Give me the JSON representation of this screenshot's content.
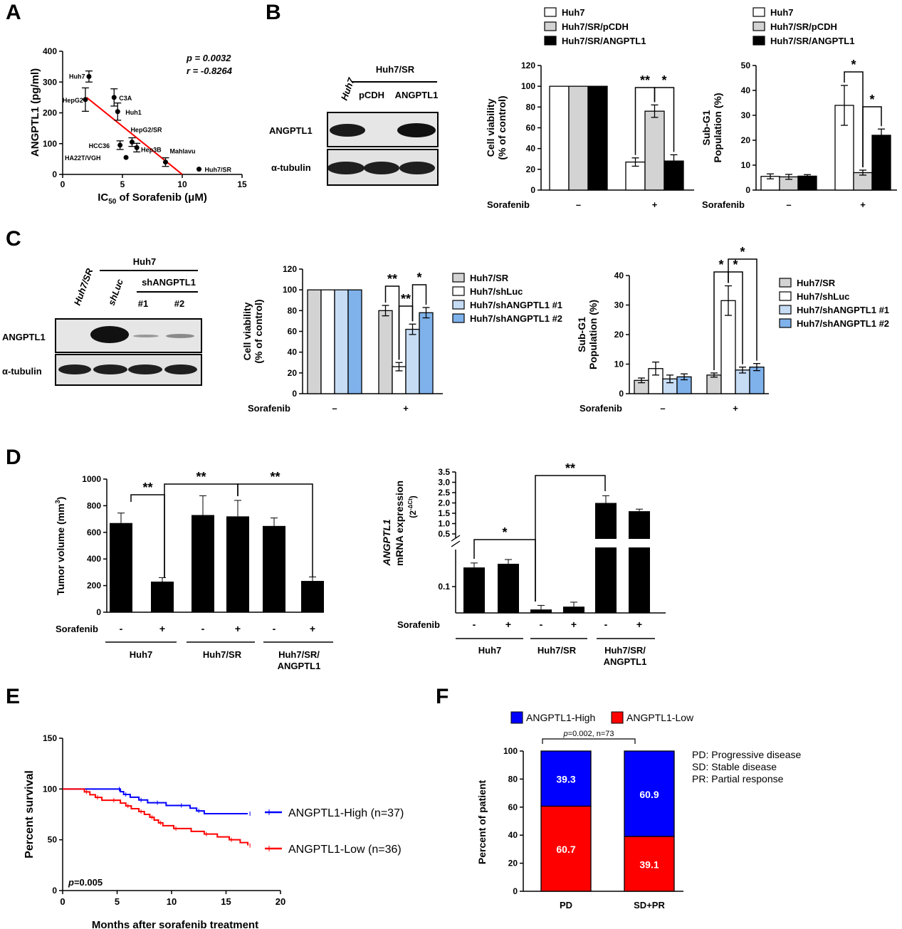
{
  "colors": {
    "red": "#ff0000",
    "blue": "#0000ff",
    "black": "#000000",
    "gray": "#d3d3d3",
    "lightblue": "#c6dcf5",
    "midblue": "#7fb2eb"
  },
  "panels": {
    "A": "A",
    "B": "B",
    "C": "C",
    "D": "D",
    "E": "E",
    "F": "F"
  },
  "labels": {
    "sorafenib": "Sorafenib",
    "minus": "–",
    "plus": "+",
    "minus_d": "-",
    "star1": "*",
    "star2": "**"
  },
  "blot_B": {
    "group_label": "Huh7/SR",
    "lane_labels": [
      "Huh7",
      "pCDH",
      "ANGPTL1"
    ],
    "rows": [
      "ANGPTL1",
      "α-tubulin"
    ]
  },
  "blot_C": {
    "group_label": "Huh7",
    "sub_label": "shANGPTL1",
    "lane_labels": [
      "Huh7/SR",
      "shLuc",
      "#1",
      "#2"
    ],
    "rows": [
      "ANGPTL1",
      "α-tubulin"
    ]
  },
  "chart_data": [
    {
      "panel": "A",
      "type": "scatter",
      "xlabel_main": "IC",
      "xlabel_sub": "50",
      "xlabel_rest": " of Sorafenib (μM)",
      "ylabel": "ANGPTL1 (pg/ml)",
      "xlim": [
        0,
        15
      ],
      "ylim": [
        0,
        400
      ],
      "xticks": [
        0,
        5,
        10,
        15
      ],
      "yticks": [
        0,
        100,
        200,
        300,
        400
      ],
      "stats": [
        "p = 0.0032",
        "r = -0.8264"
      ],
      "points": [
        {
          "label": "Huh7",
          "x": 2.2,
          "y": 318
        },
        {
          "label": "HepG2",
          "x": 1.9,
          "y": 243
        },
        {
          "label": "C3A",
          "x": 4.3,
          "y": 250
        },
        {
          "label": "Huh1",
          "x": 4.6,
          "y": 204
        },
        {
          "label": "HepG2/SR",
          "x": 5.8,
          "y": 105
        },
        {
          "label": "HCC36",
          "x": 4.8,
          "y": 95
        },
        {
          "label": "Hep3B",
          "x": 6.2,
          "y": 87
        },
        {
          "label": "HA22T/VGH",
          "x": 5.3,
          "y": 55
        },
        {
          "label": "Mahlavu",
          "x": 8.6,
          "y": 40
        },
        {
          "label": "Huh7/SR",
          "x": 11.4,
          "y": 17
        }
      ],
      "fit": {
        "x": [
          2,
          10
        ],
        "y": [
          250,
          0
        ]
      }
    },
    {
      "panel": "B-viability",
      "type": "bar",
      "ylabel": [
        "Cell viability",
        "(% of control)"
      ],
      "ylim": [
        0,
        120
      ],
      "yticks": [
        0,
        20,
        40,
        60,
        80,
        100,
        120
      ],
      "groups": [
        "–",
        "+"
      ],
      "legend": [
        "Huh7",
        "Huh7/SR/pCDH",
        "Huh7/SR/ANGPTL1"
      ],
      "series": [
        {
          "name": "Huh7",
          "values": [
            100,
            27
          ],
          "err": [
            0,
            4
          ]
        },
        {
          "name": "Huh7/SR/pCDH",
          "values": [
            100,
            76
          ],
          "err": [
            0,
            6
          ]
        },
        {
          "name": "Huh7/SR/ANGPTL1",
          "values": [
            100,
            28
          ],
          "err": [
            0,
            6
          ]
        }
      ]
    },
    {
      "panel": "B-subG1",
      "type": "bar",
      "ylabel": [
        "Sub-G1",
        "Population (%)"
      ],
      "ylim": [
        0,
        50
      ],
      "yticks": [
        0,
        10,
        20,
        30,
        40,
        50
      ],
      "groups": [
        "–",
        "+"
      ],
      "legend": [
        "Huh7",
        "Huh7/SR/pCDH",
        "Huh7/SR/ANGPTL1"
      ],
      "series": [
        {
          "name": "Huh7",
          "values": [
            5.5,
            34
          ],
          "err": [
            1,
            8
          ]
        },
        {
          "name": "Huh7/SR/pCDH",
          "values": [
            5.3,
            7
          ],
          "err": [
            1,
            1
          ]
        },
        {
          "name": "Huh7/SR/ANGPTL1",
          "values": [
            5.6,
            22
          ],
          "err": [
            0.6,
            2.5
          ]
        }
      ]
    },
    {
      "panel": "C-viability",
      "type": "bar",
      "ylabel": [
        "Cell viability",
        "(% of control)"
      ],
      "ylim": [
        0,
        120
      ],
      "yticks": [
        0,
        20,
        40,
        60,
        80,
        100,
        120
      ],
      "groups": [
        "–",
        "+"
      ],
      "legend": [
        "Huh7/SR",
        "Huh7/shLuc",
        "Huh7/shANGPTL1 #1",
        "Huh7/shANGPTL1 #2"
      ],
      "series": [
        {
          "name": "Huh7/SR",
          "values": [
            100,
            80
          ],
          "err": [
            0,
            5
          ]
        },
        {
          "name": "Huh7/shLuc",
          "values": [
            100,
            26
          ],
          "err": [
            0,
            4
          ]
        },
        {
          "name": "Huh7/shANGPTL1 #1",
          "values": [
            100,
            62
          ],
          "err": [
            0,
            5
          ]
        },
        {
          "name": "Huh7/shANGPTL1 #2",
          "values": [
            100,
            78
          ],
          "err": [
            0,
            5
          ]
        }
      ]
    },
    {
      "panel": "C-subG1",
      "type": "bar",
      "ylabel": [
        "Sub-G1",
        "Population (%)"
      ],
      "ylim": [
        0,
        40
      ],
      "yticks": [
        0,
        10,
        20,
        30,
        40
      ],
      "groups": [
        "–",
        "+"
      ],
      "legend": [
        "Huh7/SR",
        "Huh7/shLuc",
        "Huh7/shANGPTL1 #1",
        "Huh7/shANGPTL1 #2"
      ],
      "series": [
        {
          "name": "Huh7/SR",
          "values": [
            4.5,
            6.3
          ],
          "err": [
            0.8,
            0.7
          ]
        },
        {
          "name": "Huh7/shLuc",
          "values": [
            8.5,
            31.5
          ],
          "err": [
            2.2,
            5
          ]
        },
        {
          "name": "Huh7/shANGPTL1 #1",
          "values": [
            5,
            8
          ],
          "err": [
            1.3,
            1
          ]
        },
        {
          "name": "Huh7/shANGPTL1 #2",
          "values": [
            5.7,
            9
          ],
          "err": [
            1,
            1.2
          ]
        }
      ]
    },
    {
      "panel": "D-tumor",
      "type": "bar",
      "ylabel_main": "Tumor volume (mm",
      "ylabel_sup": "3",
      "ylabel_end": ")",
      "ylim": [
        0,
        1000
      ],
      "yticks": [
        0,
        200,
        400,
        600,
        800,
        1000
      ],
      "treatment": [
        "-",
        "+",
        "-",
        "+",
        "-",
        "+"
      ],
      "groups": [
        "Huh7",
        "Huh7/SR",
        [
          "Huh7/SR/",
          "ANGPTL1"
        ]
      ],
      "values": [
        670,
        230,
        730,
        720,
        648,
        235
      ],
      "err": [
        75,
        30,
        145,
        120,
        60,
        30
      ]
    },
    {
      "panel": "D-mRNA",
      "type": "bar",
      "ylabel_italic": "ANGPTL1",
      "ylabel_line2": "mRNA expression",
      "ylabel_base": "(2",
      "ylabel_sup": "-ΔCt",
      "ylabel_end": ")",
      "upper_ticks": [
        "0.5",
        "1.0",
        "1.5",
        "2.0",
        "2.5",
        "3.0",
        "3.5"
      ],
      "lower_tick": "0.1",
      "treatment": [
        "-",
        "+",
        "-",
        "+",
        "-",
        "+"
      ],
      "groups": [
        "Huh7",
        "Huh7/SR",
        [
          "Huh7/SR/",
          "ANGPTL1"
        ]
      ],
      "values": [
        0.15,
        0.19,
        0.01,
        0.012,
        2.0,
        1.6
      ],
      "err": [
        0.05,
        0.06,
        0.003,
        0.004,
        0.35,
        0.1
      ]
    },
    {
      "panel": "E",
      "type": "line",
      "xlabel": "Months after sorafenib treatment",
      "ylabel": "Percent survival",
      "xlim": [
        0,
        20
      ],
      "ylim": [
        0,
        150
      ],
      "xticks": [
        0,
        5,
        10,
        15,
        20
      ],
      "yticks": [
        0,
        50,
        100,
        150
      ],
      "pvalue_p": "p",
      "pvalue_rest": "=0.005",
      "series": [
        {
          "name": "ANGPTL1-High (n=37)",
          "color": "#0000ff",
          "x": [
            0,
            5,
            5.3,
            5.6,
            6.2,
            7,
            7.8,
            8.5,
            9.5,
            10.7,
            11.7,
            12.3,
            13,
            17
          ],
          "y": [
            100,
            100,
            97.3,
            94.6,
            91.9,
            89.2,
            86.5,
            86.5,
            83.8,
            83.8,
            81.1,
            78.4,
            75.7,
            75.7
          ]
        },
        {
          "name": "ANGPTL1-Low (n=36)",
          "color": "#ff0000",
          "x": [
            0,
            2,
            2.5,
            3,
            3.6,
            4.5,
            5.3,
            5.8,
            6.3,
            7,
            7.5,
            8,
            8.4,
            8.8,
            9.2,
            10.2,
            11.8,
            13,
            14.2,
            15.3,
            16.3,
            17
          ],
          "y": [
            100,
            97.2,
            94.4,
            91.7,
            88.9,
            88.9,
            86.1,
            83.3,
            80.6,
            77.8,
            75,
            72.2,
            69.4,
            66.7,
            63.9,
            61.1,
            58.3,
            55.6,
            52.8,
            50,
            47.2,
            44.4
          ]
        }
      ]
    },
    {
      "panel": "F",
      "type": "bar",
      "ylabel": "Percent of patient",
      "ylim": [
        0,
        100
      ],
      "yticks": [
        0,
        20,
        40,
        60,
        80,
        100
      ],
      "categories": [
        "PD",
        "SD+PR"
      ],
      "stat_p": "p",
      "stat_rest": "=0.002, n=73",
      "legend": [
        "ANGPTL1-High",
        "ANGPTL1-Low"
      ],
      "series": [
        {
          "name": "ANGPTL1-Low",
          "values": [
            60.7,
            39.1
          ],
          "labels": [
            "60.7",
            "39.1"
          ]
        },
        {
          "name": "ANGPTL1-High",
          "values": [
            39.3,
            60.9
          ],
          "labels": [
            "39.3",
            "60.9"
          ]
        }
      ],
      "notes": [
        "PD: Progressive disease",
        "SD: Stable disease",
        "PR: Partial response"
      ]
    }
  ]
}
